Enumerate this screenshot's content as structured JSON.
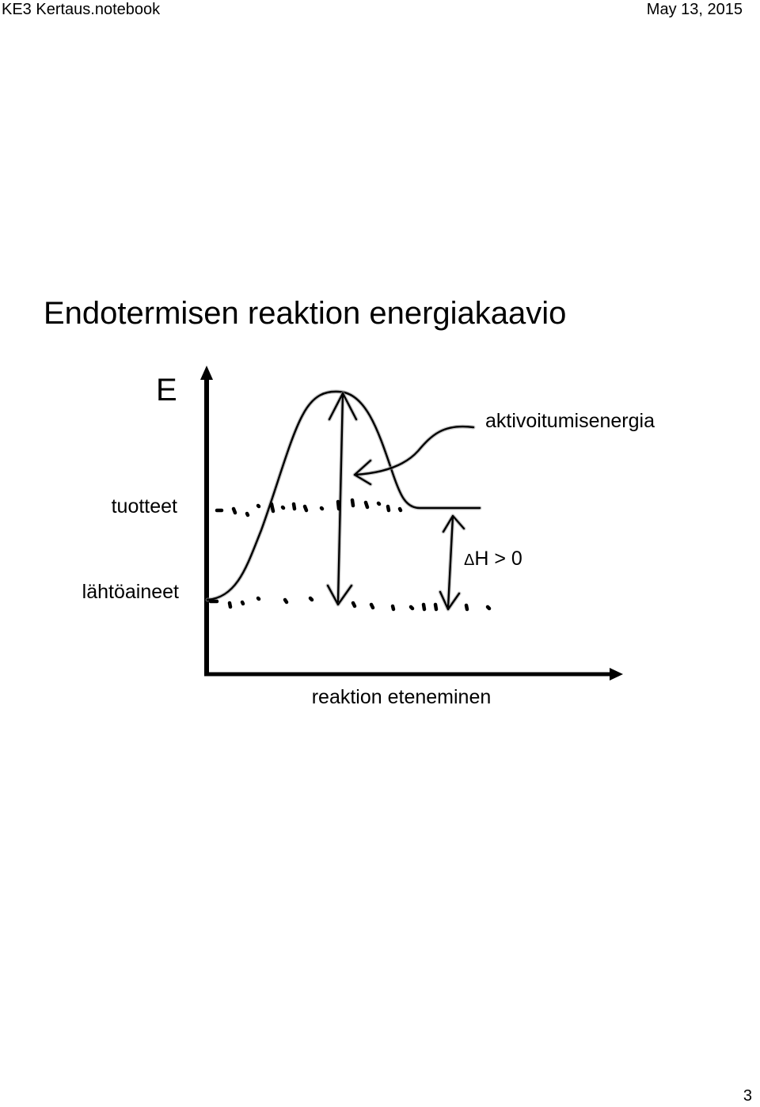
{
  "header": {
    "notebook_name": "KE3 Kertaus.notebook",
    "date": "May 13, 2015"
  },
  "title": "Endotermisen reaktion energiakaavio",
  "diagram": {
    "y_axis_label": "E",
    "x_axis_label": "reaktion eteneminen",
    "products_label": "tuotteet",
    "reactants_label": "lähtöaineet",
    "activation_label": "aktivoitumisenergia",
    "delta_symbol": "Δ",
    "delta_h_label": "H > 0"
  },
  "page_number": "3"
}
